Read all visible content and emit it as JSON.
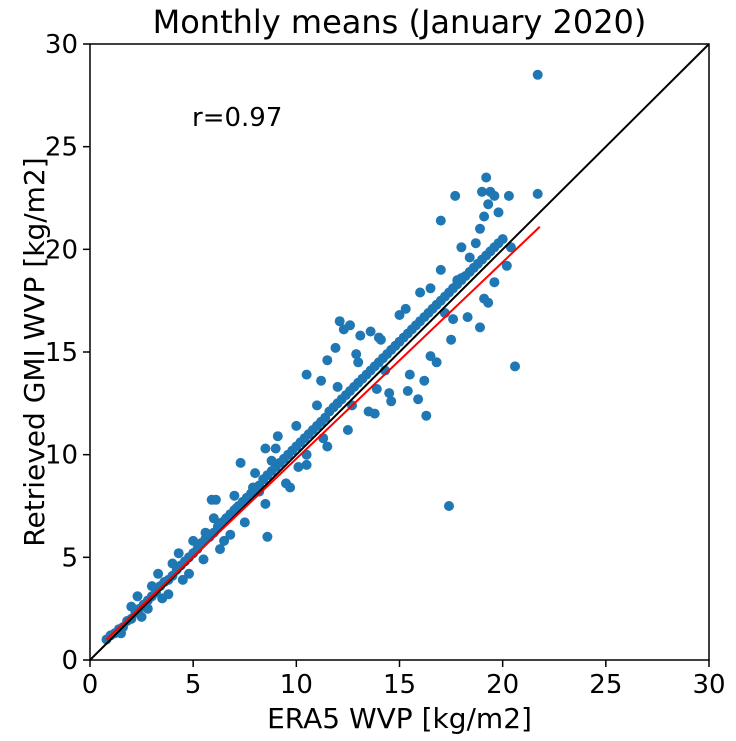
{
  "chart_data": {
    "type": "scatter",
    "title": "Monthly means (January 2020)",
    "xlabel": "ERA5 WVP [kg/m2]",
    "ylabel": "Retrieved GMI WVP [kg/m2]",
    "xlim": [
      0,
      30
    ],
    "ylim": [
      0,
      30
    ],
    "xticks": [
      "0",
      "5",
      "10",
      "15",
      "20",
      "25",
      "30"
    ],
    "yticks": [
      "0",
      "5",
      "10",
      "15",
      "20",
      "25",
      "30"
    ],
    "annotation": "r=0.97",
    "grid": false,
    "colors": {
      "points": "#1f77b4",
      "fit_line": "#ff0000",
      "identity_line": "#000000"
    },
    "identity_line": {
      "x": [
        0,
        30
      ],
      "y": [
        0,
        30
      ]
    },
    "fit_line": {
      "x": [
        0.8,
        21.8
      ],
      "y": [
        1.0,
        21.1
      ]
    },
    "points": [
      [
        0.8,
        1.0
      ],
      [
        1.0,
        1.2
      ],
      [
        1.2,
        1.3
      ],
      [
        1.4,
        1.5
      ],
      [
        1.6,
        1.6
      ],
      [
        1.8,
        1.9
      ],
      [
        2.0,
        2.0
      ],
      [
        2.2,
        2.3
      ],
      [
        2.4,
        2.5
      ],
      [
        2.6,
        2.7
      ],
      [
        2.8,
        2.9
      ],
      [
        3.0,
        3.1
      ],
      [
        3.2,
        3.3
      ],
      [
        3.4,
        3.6
      ],
      [
        3.6,
        3.8
      ],
      [
        3.8,
        3.9
      ],
      [
        4.0,
        4.1
      ],
      [
        4.2,
        4.4
      ],
      [
        4.4,
        4.6
      ],
      [
        4.6,
        4.8
      ],
      [
        4.8,
        5.0
      ],
      [
        5.0,
        5.2
      ],
      [
        5.2,
        5.4
      ],
      [
        5.4,
        5.7
      ],
      [
        5.6,
        5.9
      ],
      [
        5.8,
        6.0
      ],
      [
        6.0,
        6.2
      ],
      [
        6.2,
        6.5
      ],
      [
        6.4,
        6.7
      ],
      [
        6.6,
        6.9
      ],
      [
        6.8,
        7.1
      ],
      [
        7.0,
        7.3
      ],
      [
        7.2,
        7.5
      ],
      [
        7.4,
        7.7
      ],
      [
        7.6,
        7.9
      ],
      [
        7.8,
        8.1
      ],
      [
        8.0,
        8.3
      ],
      [
        8.2,
        8.5
      ],
      [
        8.4,
        8.8
      ],
      [
        8.6,
        9.0
      ],
      [
        8.8,
        9.2
      ],
      [
        9.0,
        9.4
      ],
      [
        9.2,
        9.6
      ],
      [
        9.4,
        9.8
      ],
      [
        9.6,
        10.0
      ],
      [
        9.8,
        10.2
      ],
      [
        10.0,
        10.4
      ],
      [
        10.2,
        10.6
      ],
      [
        10.4,
        10.8
      ],
      [
        10.6,
        11.0
      ],
      [
        10.8,
        11.2
      ],
      [
        11.0,
        11.4
      ],
      [
        11.2,
        11.6
      ],
      [
        11.4,
        11.8
      ],
      [
        11.6,
        12.1
      ],
      [
        11.8,
        12.3
      ],
      [
        12.0,
        12.5
      ],
      [
        12.2,
        12.7
      ],
      [
        12.4,
        12.9
      ],
      [
        12.6,
        13.1
      ],
      [
        12.8,
        13.3
      ],
      [
        13.0,
        13.5
      ],
      [
        13.2,
        13.7
      ],
      [
        13.4,
        13.9
      ],
      [
        13.6,
        14.1
      ],
      [
        13.8,
        14.3
      ],
      [
        14.0,
        14.5
      ],
      [
        14.2,
        14.7
      ],
      [
        14.4,
        14.9
      ],
      [
        14.6,
        15.1
      ],
      [
        14.8,
        15.3
      ],
      [
        15.0,
        15.5
      ],
      [
        15.2,
        15.7
      ],
      [
        15.4,
        15.9
      ],
      [
        15.6,
        16.1
      ],
      [
        15.8,
        16.3
      ],
      [
        16.0,
        16.5
      ],
      [
        16.2,
        16.7
      ],
      [
        16.4,
        16.9
      ],
      [
        16.6,
        17.1
      ],
      [
        16.8,
        17.3
      ],
      [
        17.0,
        17.5
      ],
      [
        17.2,
        17.7
      ],
      [
        17.4,
        17.9
      ],
      [
        17.6,
        18.1
      ],
      [
        17.8,
        18.3
      ],
      [
        18.0,
        18.5
      ],
      [
        18.2,
        18.7
      ],
      [
        18.4,
        18.9
      ],
      [
        18.6,
        19.1
      ],
      [
        18.8,
        19.3
      ],
      [
        19.0,
        19.5
      ],
      [
        19.2,
        19.7
      ],
      [
        19.4,
        19.9
      ],
      [
        19.6,
        20.1
      ],
      [
        19.8,
        20.3
      ],
      [
        20.0,
        20.5
      ],
      [
        1.5,
        1.3
      ],
      [
        2.5,
        2.1
      ],
      [
        3.5,
        3.0
      ],
      [
        4.5,
        3.9
      ],
      [
        5.5,
        4.9
      ],
      [
        6.5,
        5.8
      ],
      [
        7.5,
        6.7
      ],
      [
        8.5,
        7.6
      ],
      [
        9.5,
        8.6
      ],
      [
        10.5,
        9.5
      ],
      [
        11.5,
        10.4
      ],
      [
        12.5,
        11.2
      ],
      [
        13.5,
        12.1
      ],
      [
        14.5,
        13.0
      ],
      [
        15.5,
        13.9
      ],
      [
        16.5,
        14.8
      ],
      [
        17.5,
        15.6
      ],
      [
        2.0,
        2.6
      ],
      [
        3.0,
        3.6
      ],
      [
        4.0,
        4.7
      ],
      [
        5.0,
        5.8
      ],
      [
        6.0,
        6.9
      ],
      [
        7.0,
        8.0
      ],
      [
        8.0,
        9.1
      ],
      [
        9.0,
        10.3
      ],
      [
        10.0,
        11.4
      ],
      [
        11.0,
        12.4
      ],
      [
        12.0,
        13.3
      ],
      [
        13.0,
        14.5
      ],
      [
        14.0,
        15.7
      ],
      [
        15.0,
        16.8
      ],
      [
        16.0,
        17.9
      ],
      [
        17.0,
        19.0
      ],
      [
        18.0,
        20.1
      ],
      [
        10.5,
        13.9
      ],
      [
        11.5,
        14.6
      ],
      [
        11.9,
        15.2
      ],
      [
        12.3,
        16.1
      ],
      [
        12.1,
        16.5
      ],
      [
        12.6,
        16.3
      ],
      [
        13.1,
        15.8
      ],
      [
        13.6,
        16.0
      ],
      [
        14.1,
        15.6
      ],
      [
        12.9,
        14.9
      ],
      [
        11.2,
        13.6
      ],
      [
        13.8,
        12.0
      ],
      [
        14.6,
        12.6
      ],
      [
        15.4,
        13.1
      ],
      [
        16.2,
        13.6
      ],
      [
        16.8,
        14.5
      ],
      [
        15.9,
        12.7
      ],
      [
        16.3,
        11.9
      ],
      [
        17.8,
        18.5
      ],
      [
        18.4,
        19.6
      ],
      [
        18.9,
        21.0
      ],
      [
        19.1,
        21.6
      ],
      [
        19.3,
        22.2
      ],
      [
        19.0,
        22.8
      ],
      [
        19.4,
        22.8
      ],
      [
        19.6,
        22.6
      ],
      [
        19.8,
        21.8
      ],
      [
        18.7,
        20.3
      ],
      [
        18.0,
        18.6
      ],
      [
        17.2,
        16.9
      ],
      [
        17.6,
        16.6
      ],
      [
        18.3,
        16.7
      ],
      [
        18.9,
        16.2
      ],
      [
        19.3,
        17.4
      ],
      [
        19.6,
        18.4
      ],
      [
        20.2,
        19.2
      ],
      [
        20.4,
        20.1
      ],
      [
        19.1,
        17.6
      ],
      [
        16.5,
        18.1
      ],
      [
        15.3,
        17.1
      ],
      [
        17.0,
        21.4
      ],
      [
        17.7,
        22.6
      ],
      [
        19.2,
        23.5
      ],
      [
        20.3,
        22.6
      ],
      [
        21.7,
        22.7
      ],
      [
        21.7,
        28.5
      ],
      [
        20.6,
        14.3
      ],
      [
        17.4,
        7.5
      ],
      [
        8.2,
        8.2
      ],
      [
        7.9,
        8.4
      ],
      [
        8.8,
        9.7
      ],
      [
        10.1,
        9.4
      ],
      [
        9.1,
        10.9
      ],
      [
        7.3,
        9.6
      ],
      [
        8.5,
        10.3
      ],
      [
        9.7,
        8.4
      ],
      [
        7.1,
        7.4
      ],
      [
        8.6,
        6.0
      ],
      [
        10.5,
        10.0
      ],
      [
        11.3,
        10.8
      ],
      [
        12.7,
        12.4
      ],
      [
        13.9,
        13.2
      ],
      [
        14.3,
        14.1
      ],
      [
        6.3,
        5.4
      ],
      [
        6.8,
        6.1
      ],
      [
        5.6,
        6.2
      ],
      [
        4.8,
        4.2
      ],
      [
        3.8,
        3.2
      ],
      [
        2.8,
        2.5
      ],
      [
        5.9,
        7.8
      ],
      [
        6.1,
        7.8
      ],
      [
        4.3,
        5.2
      ],
      [
        3.3,
        4.2
      ],
      [
        2.3,
        3.1
      ]
    ]
  }
}
